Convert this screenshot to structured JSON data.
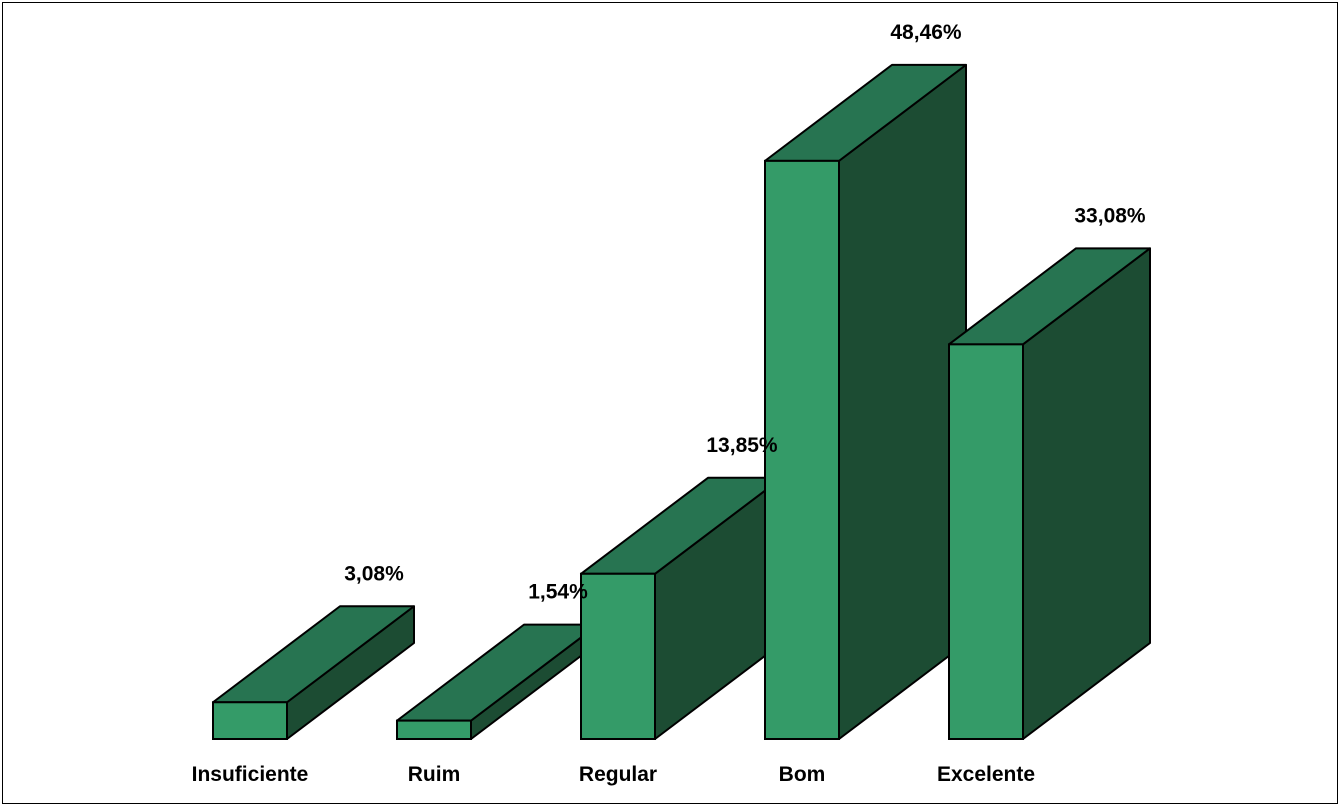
{
  "chart_data": {
    "type": "bar",
    "style": "3d",
    "categories": [
      "Insuficiente",
      "Ruim",
      "Regular",
      "Bom",
      "Excelente"
    ],
    "values": [
      3.08,
      1.54,
      13.85,
      48.46,
      33.08
    ],
    "data_labels": [
      "3,08%",
      "1,54%",
      "13,85%",
      "48,46%",
      "33,08%"
    ],
    "unit": "%",
    "ylim": [
      0,
      50
    ],
    "grid": false,
    "legend": "none",
    "colors": {
      "front": "#349B68",
      "top": "#277451",
      "side": "#1C4C33",
      "outline": "#000000"
    }
  }
}
